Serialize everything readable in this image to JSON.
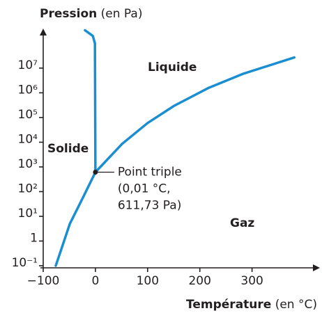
{
  "chart_data": {
    "type": "line",
    "y_label": {
      "bold": "Pression",
      "text": " (en Pa)"
    },
    "x_label": {
      "bold": "Température",
      "text": " (en °C)"
    },
    "log_y": true,
    "xlim": [
      -100,
      430
    ],
    "ylim": [
      0.1,
      400000000
    ],
    "xticks": [
      {
        "value": -100,
        "label": "−100"
      },
      0,
      100,
      200,
      300
    ],
    "yticks": [
      {
        "value": 0.1,
        "label": "10⁻¹"
      },
      1,
      {
        "value": 10,
        "label": "10¹"
      },
      {
        "value": 100,
        "label": "10²"
      },
      {
        "value": 1000,
        "label": "10³"
      },
      {
        "value": 10000,
        "label": "10⁴"
      },
      {
        "value": 100000,
        "label": "10⁵"
      },
      {
        "value": 1000000,
        "label": "10⁶"
      },
      {
        "value": 10000000,
        "label": "10⁷"
      }
    ],
    "series": [
      {
        "color": "#1b8ed1",
        "x": [
          -76,
          -49,
          -23,
          0.01,
          51,
          100,
          151,
          217,
          284,
          381
        ],
        "values": [
          0.1,
          5,
          63,
          611.73,
          8500,
          60000,
          300000,
          1600000,
          6000000,
          27000000
        ]
      },
      {
        "color": "#1b8ed1",
        "x": [
          0.01,
          -1,
          -5,
          -20
        ],
        "values": [
          611.73,
          100000000,
          200000000,
          340000000
        ]
      }
    ],
    "triple_point": {
      "x": 0.01,
      "y": 611.73,
      "label": [
        "Point triple",
        "(0,01 °C,",
        "611,73 Pa)"
      ]
    },
    "regions": [
      "Solide",
      "Liquide",
      "Gaz"
    ],
    "region_color": "#1b8ed1"
  }
}
